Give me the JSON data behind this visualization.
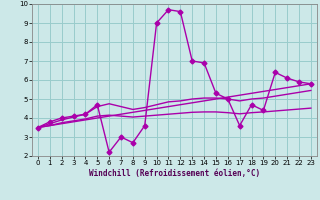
{
  "xlabel": "Windchill (Refroidissement éolien,°C)",
  "bg_color": "#cce8e8",
  "grid_color": "#99cccc",
  "line_color": "#aa00aa",
  "xmin": -0.5,
  "xmax": 23.5,
  "ymin": 2,
  "ymax": 10,
  "x_ticks": [
    0,
    1,
    2,
    3,
    4,
    5,
    6,
    7,
    8,
    9,
    10,
    11,
    12,
    13,
    14,
    15,
    16,
    17,
    18,
    19,
    20,
    21,
    22,
    23
  ],
  "y_ticks": [
    2,
    3,
    4,
    5,
    6,
    7,
    8,
    9,
    10
  ],
  "line1_x": [
    0,
    1,
    2,
    3,
    4,
    5,
    6,
    7,
    8,
    9,
    10,
    11,
    12,
    13,
    14,
    15,
    16,
    17,
    18,
    19,
    20,
    21,
    22,
    23
  ],
  "line1_y": [
    3.5,
    3.8,
    4.0,
    4.1,
    4.2,
    4.7,
    2.2,
    3.0,
    2.7,
    3.6,
    9.0,
    9.7,
    9.6,
    7.0,
    6.9,
    5.3,
    5.0,
    3.6,
    4.7,
    4.4,
    6.4,
    6.1,
    5.9,
    5.8
  ],
  "line2_x": [
    0,
    23
  ],
  "line2_y": [
    3.5,
    5.8
  ],
  "line3_x": [
    0,
    1,
    2,
    3,
    4,
    5,
    6,
    7,
    8,
    9,
    10,
    11,
    12,
    13,
    14,
    15,
    16,
    17,
    18,
    19,
    20,
    21,
    22,
    23
  ],
  "line3_y": [
    3.5,
    3.7,
    3.9,
    4.05,
    4.2,
    4.6,
    4.75,
    4.6,
    4.45,
    4.55,
    4.7,
    4.85,
    4.9,
    5.0,
    5.05,
    5.05,
    5.0,
    4.9,
    5.0,
    5.05,
    5.15,
    5.25,
    5.35,
    5.45
  ],
  "line4_x": [
    0,
    1,
    2,
    3,
    4,
    5,
    6,
    7,
    8,
    9,
    10,
    11,
    12,
    13,
    14,
    15,
    16,
    17,
    18,
    19,
    20,
    21,
    22,
    23
  ],
  "line4_y": [
    3.5,
    3.6,
    3.75,
    3.85,
    3.95,
    4.1,
    4.15,
    4.1,
    4.05,
    4.1,
    4.15,
    4.2,
    4.25,
    4.3,
    4.32,
    4.32,
    4.28,
    4.22,
    4.28,
    4.32,
    4.37,
    4.42,
    4.47,
    4.52
  ],
  "marker": "D",
  "markersize": 2.5,
  "linewidth": 1.0
}
